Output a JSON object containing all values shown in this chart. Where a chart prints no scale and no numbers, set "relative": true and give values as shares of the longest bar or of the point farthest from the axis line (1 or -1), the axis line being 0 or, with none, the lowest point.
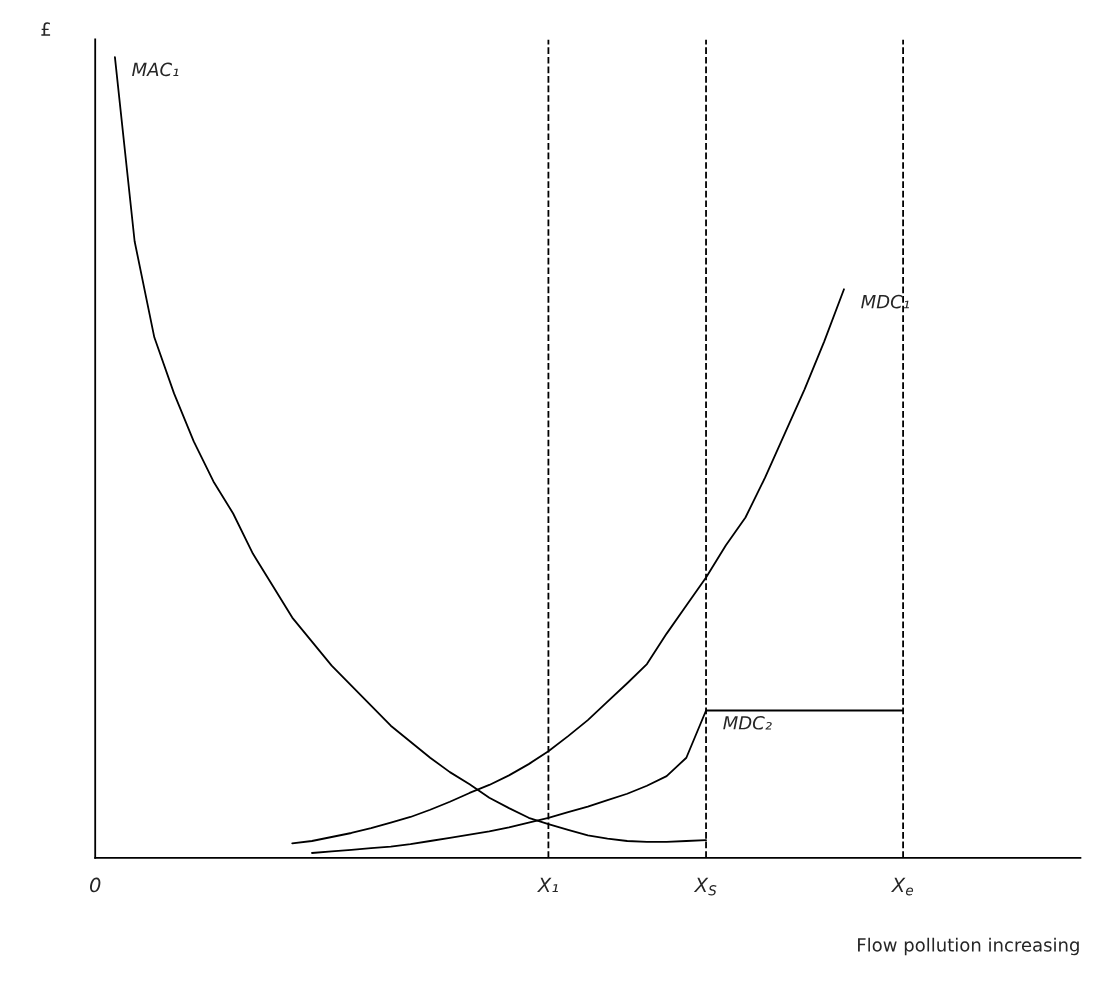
{
  "chart_data": {
    "type": "line",
    "relative": true,
    "ylabel": "£",
    "xlabel": "Flow pollution increasing",
    "categories": [
      "0",
      null,
      null,
      null,
      null,
      null,
      null,
      null,
      null,
      null,
      null,
      null,
      null,
      null,
      null,
      null,
      null,
      null,
      null,
      null,
      null,
      null,
      null,
      "X₁",
      null,
      null,
      null,
      null,
      null,
      null,
      null,
      "X$_{S}$",
      null,
      null,
      null,
      null,
      null,
      null,
      null,
      null,
      null,
      "X$_{e}$",
      null,
      null,
      null,
      null,
      null,
      null,
      null,
      null,
      null
    ],
    "grid": false,
    "legend": false,
    "marker": "none",
    "line_style": "solid",
    "ref_lines": [
      {
        "axis": "x",
        "value": "X₁",
        "line_style": "dashed",
        "color": "#000000"
      },
      {
        "axis": "x",
        "value": "X$_{S}$",
        "line_style": "dashed",
        "color": "#000000"
      },
      {
        "axis": "x",
        "value": "X$_{e}$",
        "line_style": "dashed",
        "color": "#000000"
      }
    ],
    "series": [
      {
        "name": "MAC₁",
        "color": "#000000",
        "values": [
          null,
          1.0,
          0.77,
          0.65,
          0.58,
          0.52,
          0.47,
          0.43,
          0.38,
          0.34,
          0.3,
          0.27,
          0.24,
          0.215,
          0.19,
          0.165,
          0.145,
          0.125,
          0.107,
          0.092,
          0.075,
          0.062,
          0.05,
          0.042,
          0.035,
          0.028,
          0.024,
          0.021,
          0.02,
          0.02,
          0.021,
          0.022,
          null,
          null,
          null,
          null,
          null,
          null,
          null,
          null,
          null,
          null,
          null,
          null,
          null,
          null,
          null,
          null,
          null,
          null,
          null
        ]
      },
      {
        "name": "MDC₁",
        "color": "#000000",
        "values": [
          null,
          null,
          null,
          null,
          null,
          null,
          null,
          null,
          null,
          null,
          0.018,
          0.021,
          0.026,
          0.031,
          0.037,
          0.044,
          0.051,
          0.06,
          0.07,
          0.081,
          0.091,
          0.103,
          0.117,
          0.133,
          0.152,
          0.172,
          0.195,
          0.218,
          0.242,
          0.28,
          0.315,
          0.35,
          0.39,
          0.425,
          0.475,
          0.53,
          0.585,
          0.645,
          0.71,
          null,
          null,
          null,
          null,
          null,
          null,
          null,
          null,
          null,
          null,
          null,
          null
        ]
      },
      {
        "name": "MDC₂",
        "color": "#000000",
        "values": [
          null,
          null,
          null,
          null,
          null,
          null,
          null,
          null,
          null,
          null,
          null,
          0.006,
          0.008,
          0.01,
          0.012,
          0.014,
          0.017,
          0.021,
          0.025,
          0.029,
          0.033,
          0.038,
          0.044,
          0.05,
          0.057,
          0.064,
          0.072,
          0.08,
          0.09,
          0.102,
          0.125,
          0.184,
          0.184,
          0.184,
          0.184,
          0.184,
          0.184,
          0.184,
          0.184,
          0.184,
          0.184,
          0.184,
          null,
          null,
          null,
          null,
          null,
          null,
          null,
          null,
          null
        ]
      }
    ]
  }
}
